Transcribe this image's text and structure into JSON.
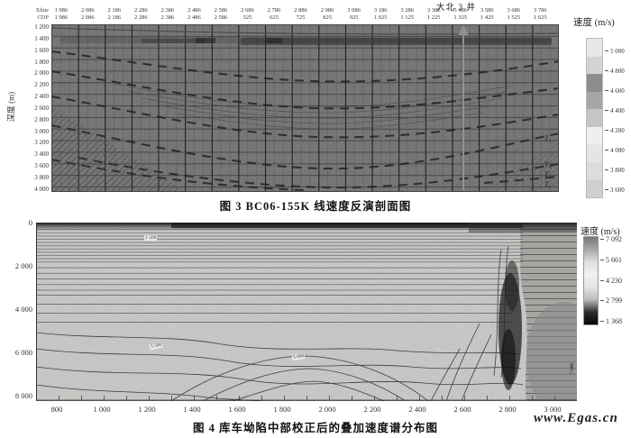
{
  "figure3": {
    "row_labels": {
      "xline": "Xline",
      "cdp": "CDP"
    },
    "xline_ticks": [
      "1 986",
      "2 086",
      "2 186",
      "2 286",
      "2 386",
      "2 486",
      "2 586",
      "2 686",
      "2 786",
      "2 886",
      "2 986",
      "3 086",
      "3 186",
      "3 286",
      "3 386",
      "3 486",
      "3 586",
      "3 686",
      "3 786"
    ],
    "cdp_ticks": [
      "1 986",
      "2 086",
      "2 186",
      "2 286",
      "2 386",
      "2 486",
      "2 586",
      "525",
      "625",
      "725",
      "825",
      "925",
      "1 025",
      "1 125",
      "1 225",
      "1 325",
      "1 425",
      "1 525",
      "1 625"
    ],
    "well_label": "大北 3 井",
    "depth_axis_label": "深度 (m)",
    "depth_ticks": [
      "1 200",
      "1 400",
      "1 600",
      "1 800",
      "2 000",
      "2 200",
      "2 400",
      "2 600",
      "2 800",
      "3 000",
      "3 200",
      "3 400",
      "3 600",
      "3 800",
      "4 000"
    ],
    "horizons": [
      "T₃",
      "T₄",
      "T₅",
      "T₆"
    ],
    "colorbar": {
      "title": "速度 (m/s)",
      "tick_labels": [
        "5 000",
        "4 800",
        "4 600",
        "4 400",
        "4 200",
        "4 000",
        "3 800",
        "3 600"
      ],
      "segment_colors": [
        "#e7e7e4",
        "#d3d3d0",
        "#8d8d8b",
        "#a6a6a3",
        "#c5c5c2",
        "#efefec",
        "#e5e5e2",
        "#dcdcd9",
        "#cfcfcc"
      ]
    },
    "caption": "图 3   BC06-155K 线速度反演剖面图"
  },
  "figure4": {
    "depth_ticks": [
      "0",
      "2 000",
      "4 000",
      "6 000",
      "8 000"
    ],
    "distance_ticks": [
      "800",
      "1 000",
      "1 200",
      "1 400",
      "1 600",
      "1 800",
      "2 000",
      "2 200",
      "2 400",
      "2 600",
      "2 800",
      "3 000"
    ],
    "colorbar": {
      "title": "速度 (m/s)",
      "tick_labels": [
        "7 092",
        "5 661",
        "4 230",
        "2 799",
        "1 368"
      ],
      "gradient": [
        "#787876",
        "#a8a8a6",
        "#dededb",
        "#f1f1ee",
        "#e4e4e1",
        "#bdbdbb",
        "#2e2e2c",
        "#060606"
      ]
    },
    "contour_labels": [
      "1 500",
      "3 500",
      "5 000",
      "7 000"
    ],
    "caption": "图 4   库车坳陷中部校正后的叠加速度谱分布图"
  },
  "watermark": {
    "text": "www.Egas.cn",
    "color": "#e2837e"
  }
}
